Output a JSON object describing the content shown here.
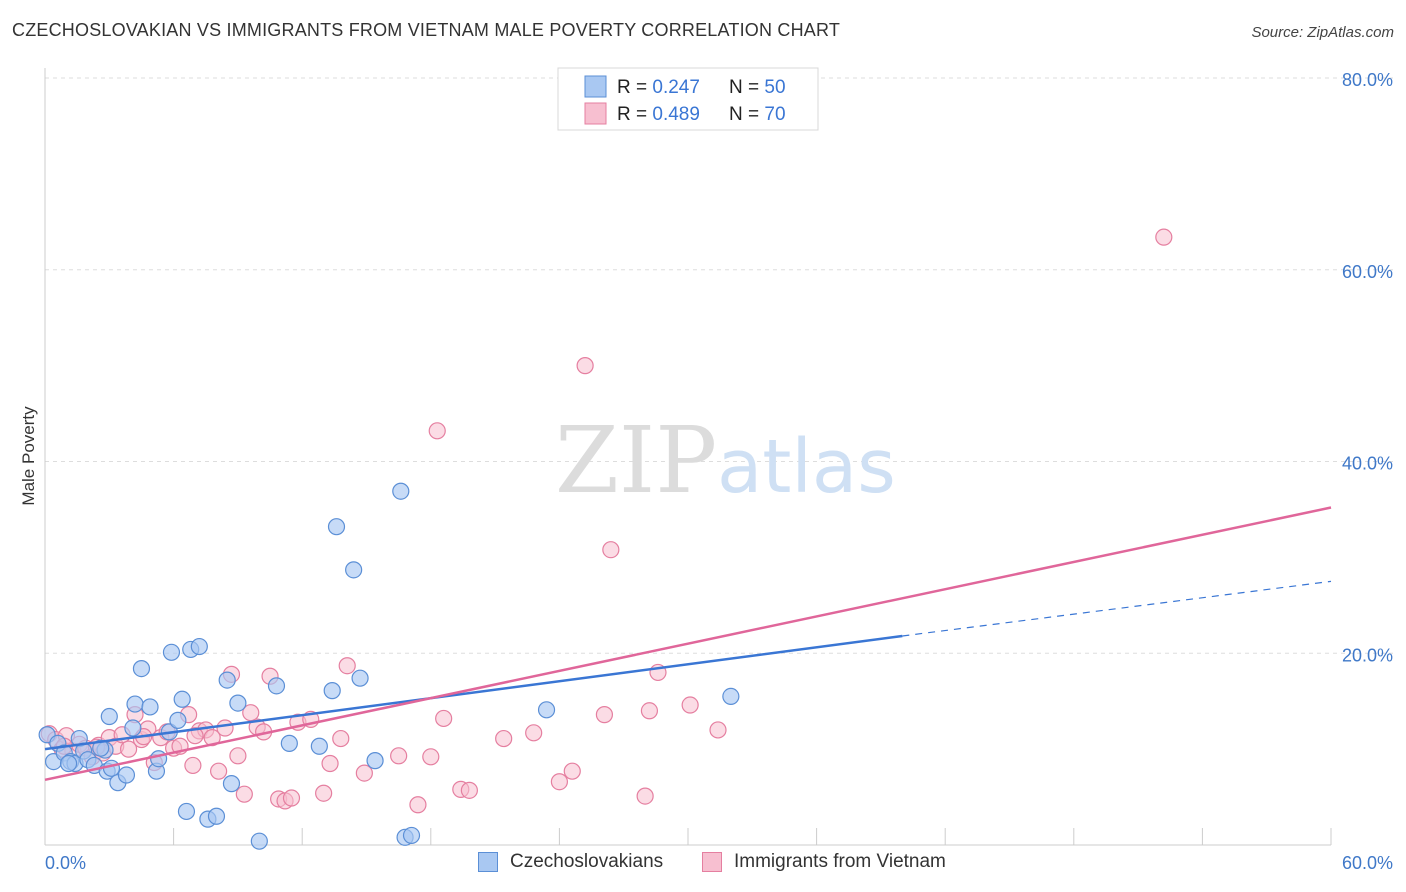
{
  "title": "CZECHOSLOVAKIAN VS IMMIGRANTS FROM VIETNAM MALE POVERTY CORRELATION CHART",
  "source": "Source: ZipAtlas.com",
  "watermark": {
    "zip": "ZIP",
    "atlas": "atlas"
  },
  "legend_top": {
    "rows": [
      {
        "r_label": "R = ",
        "r_value": "0.247",
        "n_label": "N = ",
        "n_value": "50"
      },
      {
        "r_label": "R = ",
        "r_value": "0.489",
        "n_label": "N = ",
        "n_value": "70"
      }
    ]
  },
  "legend_bottom": {
    "items": [
      {
        "label": "Czechoslovakians"
      },
      {
        "label": "Immigrants from Vietnam"
      }
    ]
  },
  "chart_data": {
    "type": "scatter",
    "title": "CZECHOSLOVAKIAN VS IMMIGRANTS FROM VIETNAM MALE POVERTY CORRELATION CHART",
    "xlabel": "",
    "ylabel": "Male Poverty",
    "xlim": [
      0,
      60
    ],
    "ylim": [
      0,
      80
    ],
    "x_tick_labels": [
      "0.0%",
      "60.0%"
    ],
    "y_ticks": [
      20,
      40,
      60,
      80
    ],
    "y_tick_labels": [
      "20.0%",
      "40.0%",
      "60.0%",
      "80.0%"
    ],
    "grid": true,
    "legend_position": "top-center",
    "colors": {
      "czech_fill": "#a9c8f2",
      "czech_stroke": "#5b8fd6",
      "czech_line": "#3a76d4",
      "viet_fill": "#f7bfd0",
      "viet_stroke": "#e57fa0",
      "viet_line": "#e0669a",
      "axis_text": "#3f78c8"
    },
    "series": [
      {
        "name": "Czechoslovakians",
        "r": 0.247,
        "n": 50,
        "trend": {
          "x0": 0,
          "y0": 10.0,
          "x1": 40,
          "y1": 21.8,
          "dash_to_x": 60,
          "dash_to_y": 27.5
        },
        "points": [
          [
            0.1,
            11.5
          ],
          [
            0.4,
            8.7
          ],
          [
            0.6,
            10.6
          ],
          [
            0.9,
            9.6
          ],
          [
            1.2,
            8.7
          ],
          [
            1.4,
            8.5
          ],
          [
            1.6,
            11.1
          ],
          [
            1.8,
            9.8
          ],
          [
            2.0,
            8.9
          ],
          [
            2.3,
            8.3
          ],
          [
            2.8,
            9.9
          ],
          [
            2.9,
            7.7
          ],
          [
            3.0,
            13.4
          ],
          [
            3.1,
            8.0
          ],
          [
            3.4,
            6.5
          ],
          [
            3.8,
            7.3
          ],
          [
            4.1,
            12.2
          ],
          [
            4.2,
            14.7
          ],
          [
            4.5,
            18.4
          ],
          [
            4.9,
            14.4
          ],
          [
            5.2,
            7.7
          ],
          [
            5.3,
            9.0
          ],
          [
            5.8,
            11.8
          ],
          [
            5.9,
            20.1
          ],
          [
            6.2,
            13.0
          ],
          [
            6.4,
            15.2
          ],
          [
            6.6,
            3.5
          ],
          [
            6.8,
            20.4
          ],
          [
            7.2,
            20.7
          ],
          [
            7.6,
            2.7
          ],
          [
            8.0,
            3.0
          ],
          [
            8.5,
            17.2
          ],
          [
            8.7,
            6.4
          ],
          [
            9.0,
            14.8
          ],
          [
            10.0,
            0.4
          ],
          [
            10.8,
            16.6
          ],
          [
            11.4,
            10.6
          ],
          [
            12.8,
            10.3
          ],
          [
            13.4,
            16.1
          ],
          [
            13.6,
            33.2
          ],
          [
            14.4,
            28.7
          ],
          [
            14.7,
            17.4
          ],
          [
            15.4,
            8.8
          ],
          [
            16.6,
            36.9
          ],
          [
            16.8,
            0.8
          ],
          [
            17.1,
            1.0
          ],
          [
            23.4,
            14.1
          ],
          [
            32.0,
            15.5
          ],
          [
            1.1,
            8.5
          ],
          [
            2.6,
            10.1
          ]
        ]
      },
      {
        "name": "Immigrants from Vietnam",
        "r": 0.489,
        "n": 70,
        "trend": {
          "x0": 0,
          "y0": 6.8,
          "x1": 60,
          "y1": 35.2
        },
        "points": [
          [
            0.2,
            11.6
          ],
          [
            0.5,
            11.0
          ],
          [
            0.8,
            10.0
          ],
          [
            1.0,
            11.4
          ],
          [
            1.3,
            9.8
          ],
          [
            1.6,
            10.5
          ],
          [
            1.9,
            10.1
          ],
          [
            2.2,
            9.2
          ],
          [
            2.5,
            10.4
          ],
          [
            2.7,
            9.6
          ],
          [
            3.0,
            11.2
          ],
          [
            3.3,
            10.3
          ],
          [
            3.6,
            11.5
          ],
          [
            3.9,
            10.0
          ],
          [
            4.2,
            13.6
          ],
          [
            4.5,
            11.0
          ],
          [
            4.8,
            12.1
          ],
          [
            5.1,
            8.6
          ],
          [
            5.4,
            11.2
          ],
          [
            5.7,
            11.8
          ],
          [
            6.0,
            10.1
          ],
          [
            6.3,
            10.3
          ],
          [
            6.7,
            13.6
          ],
          [
            6.9,
            8.3
          ],
          [
            7.2,
            11.9
          ],
          [
            7.5,
            12.0
          ],
          [
            7.8,
            11.2
          ],
          [
            8.1,
            7.7
          ],
          [
            8.4,
            12.2
          ],
          [
            8.7,
            17.8
          ],
          [
            9.0,
            9.3
          ],
          [
            9.3,
            5.3
          ],
          [
            9.6,
            13.8
          ],
          [
            9.9,
            12.3
          ],
          [
            10.2,
            11.8
          ],
          [
            10.5,
            17.6
          ],
          [
            10.9,
            4.8
          ],
          [
            11.2,
            4.6
          ],
          [
            11.5,
            4.9
          ],
          [
            11.8,
            12.8
          ],
          [
            12.4,
            13.1
          ],
          [
            13.0,
            5.4
          ],
          [
            13.3,
            8.5
          ],
          [
            13.8,
            11.1
          ],
          [
            14.1,
            18.7
          ],
          [
            14.9,
            7.5
          ],
          [
            16.5,
            9.3
          ],
          [
            17.4,
            4.2
          ],
          [
            18.0,
            9.2
          ],
          [
            18.3,
            43.2
          ],
          [
            18.6,
            13.2
          ],
          [
            19.4,
            5.8
          ],
          [
            19.8,
            5.7
          ],
          [
            21.4,
            11.1
          ],
          [
            22.8,
            11.7
          ],
          [
            24.0,
            6.6
          ],
          [
            24.6,
            7.7
          ],
          [
            25.2,
            50.0
          ],
          [
            26.1,
            13.6
          ],
          [
            26.4,
            30.8
          ],
          [
            28.0,
            5.1
          ],
          [
            28.2,
            14.0
          ],
          [
            28.6,
            18.0
          ],
          [
            30.1,
            14.6
          ],
          [
            31.4,
            12.0
          ],
          [
            52.2,
            63.4
          ],
          [
            0.9,
            10.3
          ],
          [
            2.4,
            10.2
          ],
          [
            4.6,
            11.3
          ],
          [
            7.0,
            11.4
          ]
        ]
      }
    ]
  }
}
